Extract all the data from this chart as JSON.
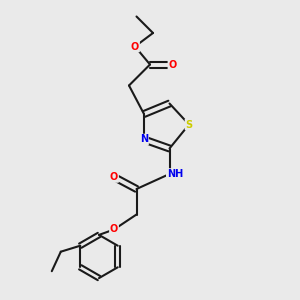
{
  "background_color": "#eaeaea",
  "bond_color": "#1a1a1a",
  "colors": {
    "O": "#ff0000",
    "N": "#0000ee",
    "S": "#cccc00",
    "H": "#88bbbb",
    "C": "#1a1a1a"
  }
}
